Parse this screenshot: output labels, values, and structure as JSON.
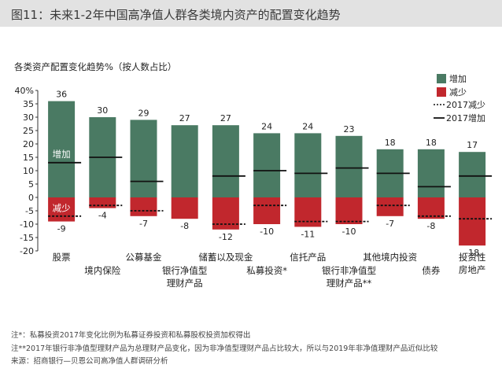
{
  "header": {
    "title": "图11：未来1-2年中国高净值人群各类境内资产的配置变化趋势"
  },
  "chart_data": {
    "type": "bar",
    "title": "各类资产配置变化趋势%（按人数占比）",
    "categories": [
      [
        "股票"
      ],
      [
        "境内保险"
      ],
      [
        "公募基金"
      ],
      [
        "银行净值型",
        "理财产品"
      ],
      [
        "储蓄以及现金"
      ],
      [
        "私募投资*"
      ],
      [
        "信托产品"
      ],
      [
        "银行非净值型",
        "理财产品**"
      ],
      [
        "其他境内投资"
      ],
      [
        "债券"
      ],
      [
        "投资性",
        "房地产"
      ]
    ],
    "series": [
      {
        "name": "增加",
        "color": "#4a7a63",
        "values": [
          36,
          30,
          29,
          27,
          27,
          24,
          24,
          23,
          18,
          18,
          17
        ]
      },
      {
        "name": "减少",
        "color": "#c1272d",
        "values": [
          -9,
          -4,
          -7,
          -8,
          -12,
          -10,
          -11,
          -10,
          -7,
          -8,
          -18
        ]
      },
      {
        "name": "2017减少",
        "style": "dotted",
        "values": [
          -7,
          -3,
          -5,
          null,
          -10,
          -3,
          -9,
          -9,
          -3,
          -7,
          -8
        ]
      },
      {
        "name": "2017增加",
        "style": "solid",
        "values": [
          13,
          15,
          6,
          null,
          8,
          10,
          9,
          11,
          9,
          4,
          8
        ]
      }
    ],
    "value_labels": [
      "36",
      "30",
      "29",
      "27",
      "27",
      "24",
      "24",
      "23",
      "18",
      "18",
      "17",
      "-9",
      "-4",
      "-7",
      "-8",
      "-12",
      "-10",
      "-11",
      "-10",
      "-7",
      "-8",
      "-18"
    ],
    "ylim": [
      -20,
      40
    ],
    "yticks": [
      "40%",
      "35",
      "30",
      "25",
      "20",
      "15",
      "10",
      "5",
      "0",
      "-5",
      "-10",
      "-15",
      "-20"
    ],
    "in_bar_labels": [
      "增加",
      "减少"
    ],
    "legend": [
      "增加",
      "减少",
      "2017减少",
      "2017增加"
    ],
    "legend_position": "top-right",
    "grid": false
  },
  "notes": [
    "注*：私募投资2017年变化比例为私募证券投资和私募股权投资加权得出",
    "注**2017年银行非净值型理财产品为总理财产品变化，因为非净值型理财产品占比较大，所以与2019年非净值理财产品近似比较",
    "来源：招商银行—贝恩公司高净值人群调研分析"
  ]
}
